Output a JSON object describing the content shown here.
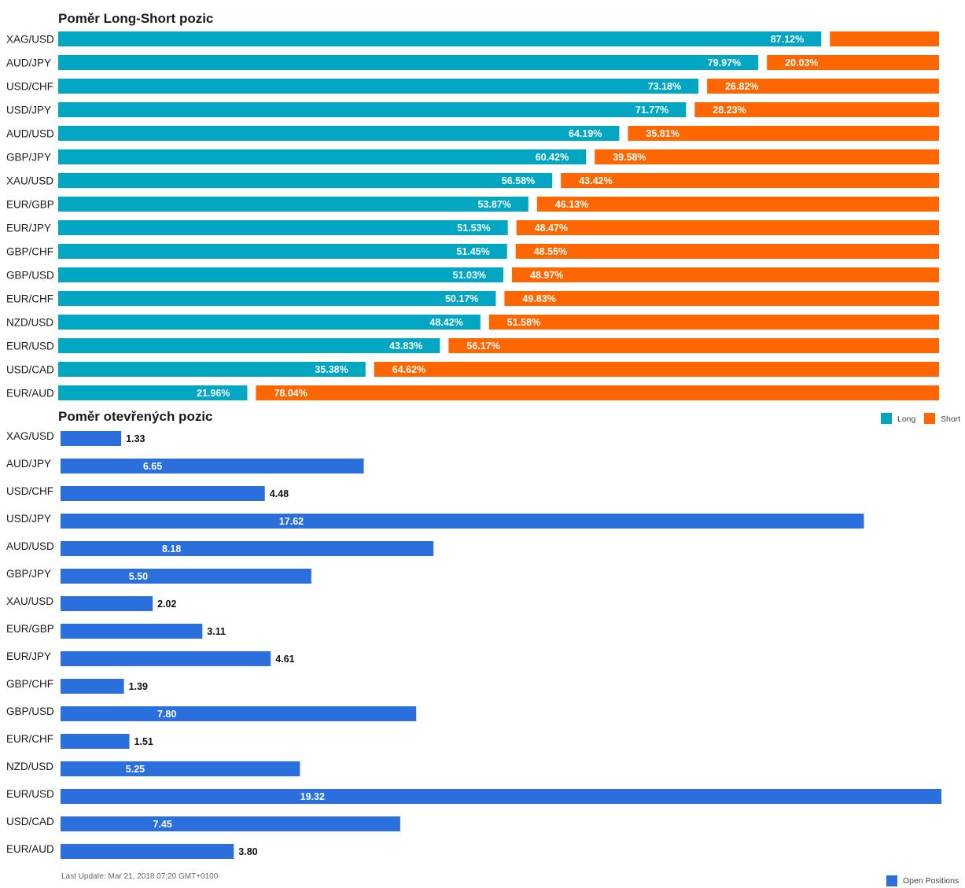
{
  "chart_data": [
    {
      "type": "bar",
      "orientation": "horizontal",
      "stacked": true,
      "title": "Poměr Long-Short pozic",
      "categories": [
        "XAG/USD",
        "AUD/JPY",
        "USD/CHF",
        "USD/JPY",
        "AUD/USD",
        "GBP/JPY",
        "XAU/USD",
        "EUR/GBP",
        "EUR/JPY",
        "GBP/CHF",
        "GBP/USD",
        "EUR/CHF",
        "NZD/USD",
        "EUR/USD",
        "USD/CAD",
        "EUR/AUD"
      ],
      "series": [
        {
          "name": "Long",
          "color": "#00a6c2",
          "values": [
            87.12,
            79.97,
            73.18,
            71.77,
            64.19,
            60.42,
            56.58,
            53.87,
            51.53,
            51.45,
            51.03,
            50.17,
            48.42,
            43.83,
            35.38,
            21.96
          ]
        },
        {
          "name": "Short",
          "color": "#ff6600",
          "values": [
            12.88,
            20.03,
            26.82,
            28.23,
            35.81,
            39.58,
            43.42,
            46.13,
            48.47,
            48.55,
            48.97,
            49.83,
            51.58,
            56.17,
            64.62,
            78.04
          ]
        }
      ],
      "data_labels": {
        "Long": [
          "87.12%",
          "79.97%",
          "73.18%",
          "71.77%",
          "64.19%",
          "60.42%",
          "56.58%",
          "53.87%",
          "51.53%",
          "51.45%",
          "51.03%",
          "50.17%",
          "48.42%",
          "43.83%",
          "35.38%",
          "21.96%"
        ],
        "Short": [
          "",
          "20.03%",
          "26.82%",
          "28.23%",
          "35.81%",
          "39.58%",
          "43.42%",
          "46.13%",
          "48.47%",
          "48.55%",
          "48.97%",
          "49.83%",
          "51.58%",
          "56.17%",
          "64.62%",
          "78.04%"
        ]
      },
      "xlim": [
        0,
        100
      ],
      "legend_position": "bottom-right",
      "grid": false
    },
    {
      "type": "bar",
      "orientation": "horizontal",
      "title": "Poměr otevřených pozic",
      "categories": [
        "XAG/USD",
        "AUD/JPY",
        "USD/CHF",
        "USD/JPY",
        "AUD/USD",
        "GBP/JPY",
        "XAU/USD",
        "EUR/GBP",
        "EUR/JPY",
        "GBP/CHF",
        "GBP/USD",
        "EUR/CHF",
        "NZD/USD",
        "EUR/USD",
        "USD/CAD",
        "EUR/AUD"
      ],
      "series": [
        {
          "name": "Open Positions",
          "color": "#2a6fdb",
          "values": [
            1.33,
            6.65,
            4.48,
            17.62,
            8.18,
            5.5,
            2.02,
            3.11,
            4.61,
            1.39,
            7.8,
            1.51,
            5.25,
            19.32,
            7.45,
            3.8
          ]
        }
      ],
      "data_labels": [
        "1.33",
        "6.65",
        "4.48",
        "17.62",
        "8.18",
        "5.50",
        "2.02",
        "3.11",
        "4.61",
        "1.39",
        "7.80",
        "1.51",
        "5.25",
        "19.32",
        "7.45",
        "3.80"
      ],
      "xlim": [
        0,
        19.32
      ],
      "legend_position": "bottom-right",
      "grid": false
    }
  ],
  "footer": {
    "last_update": "Last Update: Mar 21, 2018 07:20 GMT+0100"
  }
}
